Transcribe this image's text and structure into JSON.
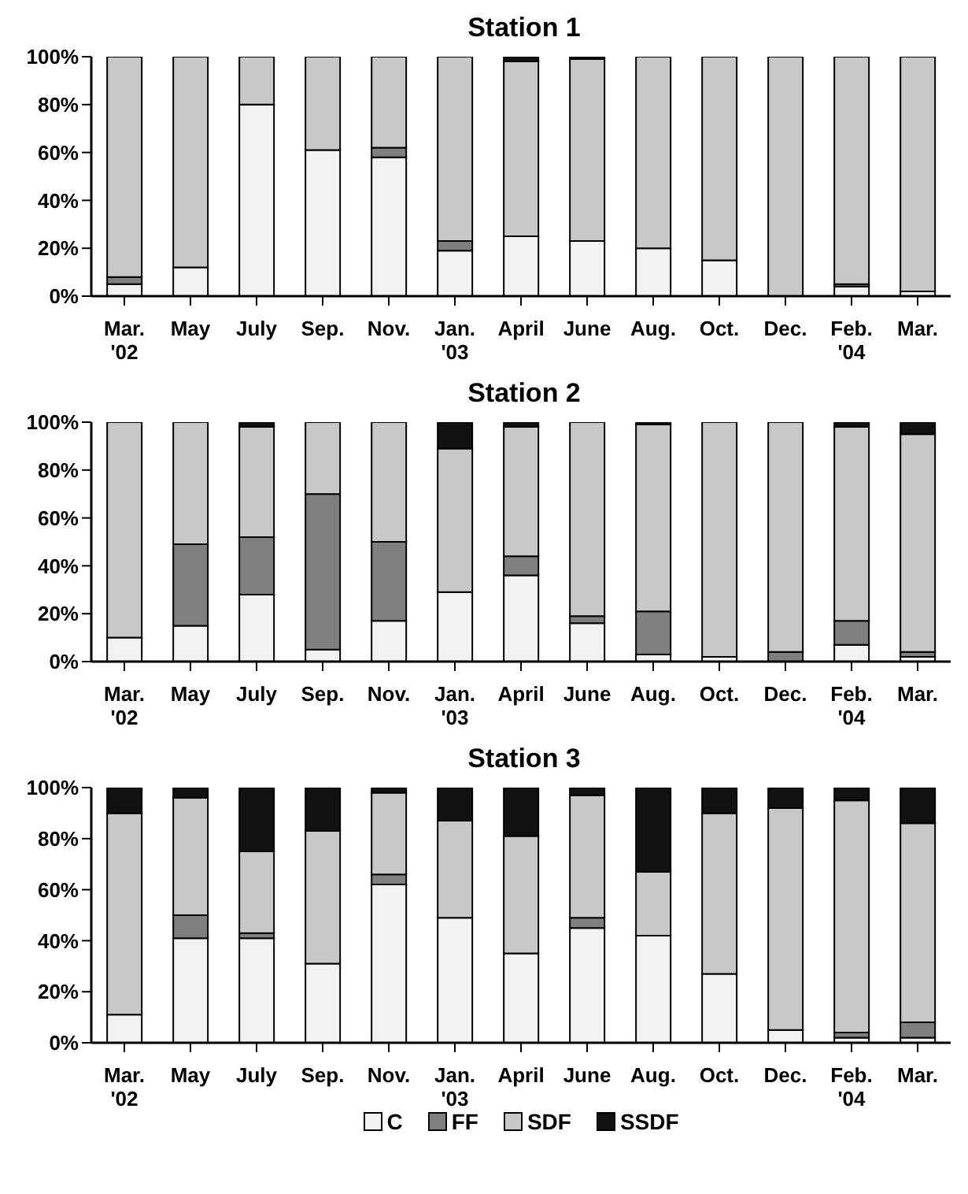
{
  "chart_data": [
    {
      "type": "bar",
      "title": "Station 1",
      "stacked": true,
      "categories": [
        "Mar.\n'02",
        "May",
        "July",
        "Sep.",
        "Nov.",
        "Jan.\n'03",
        "April",
        "June",
        "Aug.",
        "Oct.",
        "Dec.",
        "Feb.\n'04",
        "Mar."
      ],
      "ylim": [
        0,
        100
      ],
      "yticks": [
        {
          "value": 0,
          "label": "0%"
        },
        {
          "value": 20,
          "label": "20%"
        },
        {
          "value": 40,
          "label": "40%"
        },
        {
          "value": 60,
          "label": "60%"
        },
        {
          "value": 80,
          "label": "80%"
        },
        {
          "value": 100,
          "label": "100%"
        }
      ],
      "grid": false,
      "legend": false,
      "series": [
        {
          "color": "#f2f2f2",
          "values": [
            5,
            12,
            80,
            61,
            58,
            19,
            25,
            23,
            20,
            15,
            0,
            4,
            2
          ]
        },
        {
          "color": "#7f7f7f",
          "values": [
            3,
            0,
            0,
            0,
            4,
            4,
            0,
            0,
            0,
            0,
            0,
            1,
            0
          ]
        },
        {
          "color": "#c8c8c8",
          "values": [
            92,
            88,
            20,
            39,
            38,
            77,
            73,
            76,
            80,
            85,
            100,
            95,
            98
          ]
        },
        {
          "color": "#111111",
          "values": [
            0,
            0,
            0,
            0,
            0,
            0,
            2,
            1,
            0,
            0,
            0,
            0,
            0
          ]
        }
      ]
    },
    {
      "type": "bar",
      "title": "Station 2",
      "stacked": true,
      "categories": [
        "Mar.\n'02",
        "May",
        "July",
        "Sep.",
        "Nov.",
        "Jan.\n'03",
        "April",
        "June",
        "Aug.",
        "Oct.",
        "Dec.",
        "Feb.\n'04",
        "Mar."
      ],
      "ylim": [
        0,
        100
      ],
      "yticks": [
        {
          "value": 0,
          "label": "0%"
        },
        {
          "value": 20,
          "label": "20%"
        },
        {
          "value": 40,
          "label": "40%"
        },
        {
          "value": 60,
          "label": "60%"
        },
        {
          "value": 80,
          "label": "80%"
        },
        {
          "value": 100,
          "label": "100%"
        }
      ],
      "grid": false,
      "legend": false,
      "series": [
        {
          "color": "#f2f2f2",
          "values": [
            10,
            15,
            28,
            5,
            17,
            29,
            36,
            16,
            3,
            2,
            0,
            7,
            2
          ]
        },
        {
          "color": "#7f7f7f",
          "values": [
            0,
            34,
            24,
            65,
            33,
            0,
            8,
            3,
            18,
            0,
            4,
            10,
            2
          ]
        },
        {
          "color": "#c8c8c8",
          "values": [
            90,
            51,
            46,
            30,
            50,
            60,
            54,
            81,
            78,
            98,
            96,
            81,
            91
          ]
        },
        {
          "color": "#111111",
          "values": [
            0,
            0,
            2,
            0,
            0,
            11,
            2,
            0,
            1,
            0,
            0,
            2,
            5
          ]
        }
      ]
    },
    {
      "type": "bar",
      "title": "Station 3",
      "stacked": true,
      "categories": [
        "Mar.\n'02",
        "May",
        "July",
        "Sep.",
        "Nov.",
        "Jan.\n'03",
        "April",
        "June",
        "Aug.",
        "Oct.",
        "Dec.",
        "Feb.\n'04",
        "Mar."
      ],
      "ylim": [
        0,
        100
      ],
      "yticks": [
        {
          "value": 0,
          "label": "0%"
        },
        {
          "value": 20,
          "label": "20%"
        },
        {
          "value": 40,
          "label": "40%"
        },
        {
          "value": 60,
          "label": "60%"
        },
        {
          "value": 80,
          "label": "80%"
        },
        {
          "value": 100,
          "label": "100%"
        }
      ],
      "grid": false,
      "legend": "bottom",
      "series": [
        {
          "name": "C",
          "color": "#f2f2f2",
          "values": [
            11,
            41,
            41,
            31,
            62,
            49,
            35,
            45,
            42,
            27,
            5,
            2,
            2
          ]
        },
        {
          "name": "FF",
          "color": "#7f7f7f",
          "values": [
            0,
            9,
            2,
            0,
            4,
            0,
            0,
            4,
            0,
            0,
            0,
            2,
            6
          ]
        },
        {
          "name": "SDF",
          "color": "#c8c8c8",
          "values": [
            79,
            46,
            32,
            52,
            32,
            38,
            46,
            48,
            25,
            63,
            87,
            91,
            78
          ]
        },
        {
          "name": "SSDF",
          "color": "#111111",
          "values": [
            10,
            4,
            25,
            17,
            2,
            13,
            19,
            3,
            33,
            10,
            8,
            5,
            14
          ]
        }
      ]
    }
  ]
}
